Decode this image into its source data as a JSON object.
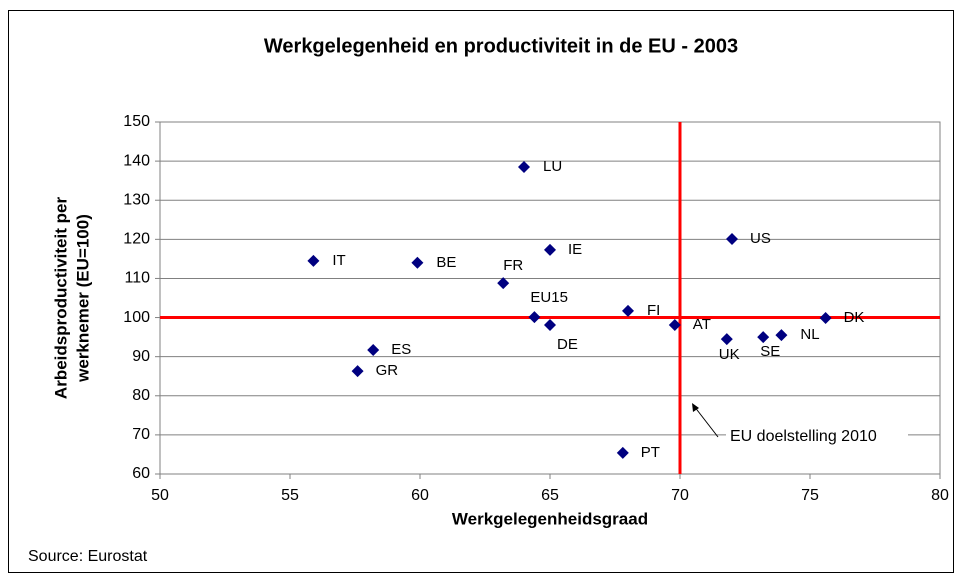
{
  "chart_data": {
    "type": "scatter",
    "title": "Werkgelegenheid en productiviteit in de EU - 2003",
    "x_label": "Werkgelegenheidsgraad",
    "y_label": [
      "Arbeidsproductiviteit per",
      "werknemer (EU=100)"
    ],
    "source": "Source: Eurostat",
    "annotation": "EU doelstelling 2010",
    "point_labels": [
      "IT",
      "BE",
      "LU",
      "IE",
      "FR",
      "EU15",
      "DE",
      "FI",
      "AT",
      "US",
      "UK",
      "SE",
      "NL",
      "DK",
      "ES",
      "GR",
      "PT"
    ],
    "x": [
      55.9,
      59.9,
      64.0,
      65.0,
      63.2,
      64.4,
      65.0,
      68.0,
      69.8,
      72.0,
      71.8,
      73.2,
      73.9,
      75.6,
      58.2,
      57.6,
      67.8
    ],
    "values": [
      114.5,
      114.0,
      138.5,
      117.3,
      108.8,
      100.1,
      98.1,
      101.7,
      98.1,
      120.1,
      94.5,
      95.0,
      95.5,
      99.9,
      91.7,
      86.3,
      65.4
    ],
    "color": "#000080",
    "reference_lines": {
      "x": 70,
      "y": 100,
      "color": "#ff0000"
    },
    "xlim": [
      50,
      80
    ],
    "xticks": [
      50,
      55,
      60,
      65,
      70,
      75,
      80
    ],
    "ylim": [
      60,
      150
    ],
    "yticks": [
      60,
      70,
      80,
      90,
      100,
      110,
      120,
      130,
      140,
      150
    ],
    "grid": true
  }
}
